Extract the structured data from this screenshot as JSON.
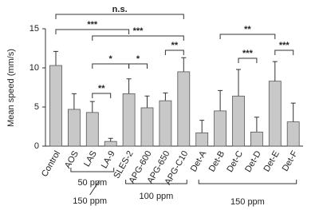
{
  "chart_data": {
    "type": "bar",
    "y_label": "Mean speed (mm/s)",
    "categories": [
      "Control",
      "AOS",
      "LAS",
      "LA-9",
      "SLES-2",
      "APG-600",
      "APG-650",
      "APG-C10",
      "Det-A",
      "Det-B",
      "Det-C",
      "Det-D",
      "Det-E",
      "Det-F"
    ],
    "values": [
      10.3,
      4.7,
      4.3,
      0.6,
      6.7,
      4.9,
      5.8,
      9.5,
      1.7,
      4.5,
      6.4,
      1.8,
      8.3,
      3.1
    ],
    "errors": [
      1.8,
      2.0,
      1.4,
      0.4,
      1.9,
      1.5,
      1.0,
      1.8,
      1.6,
      2.6,
      3.4,
      1.9,
      2.5,
      2.4
    ],
    "color": "#c8c8c8",
    "ylim": [
      0,
      15
    ],
    "yticks": [
      0,
      5,
      10,
      15
    ],
    "comparisons": [
      {
        "from": 0,
        "to": 7,
        "label": "n.s."
      },
      {
        "from": 0,
        "to": 4,
        "label": "***"
      },
      {
        "from": 2,
        "to": 7,
        "label": "***"
      },
      {
        "from": 9,
        "to": 12,
        "label": "**"
      },
      {
        "from": 6,
        "to": 7,
        "label": "**"
      },
      {
        "from": 12,
        "to": 13,
        "label": "***"
      },
      {
        "from": 10,
        "to": 11,
        "label": "***"
      },
      {
        "from": 2,
        "to": 4,
        "label": "*"
      },
      {
        "from": 4,
        "to": 5,
        "label": "*"
      },
      {
        "from": 2,
        "to": 3,
        "label": "**"
      }
    ],
    "groups": [
      {
        "from": 1,
        "to": 3,
        "label": "50 ppm"
      },
      {
        "from": 3,
        "to": 3,
        "label": "150 ppm"
      },
      {
        "from": 4,
        "to": 7,
        "label": "100 ppm"
      },
      {
        "from": 8,
        "to": 13,
        "label": "150 ppm"
      }
    ]
  }
}
